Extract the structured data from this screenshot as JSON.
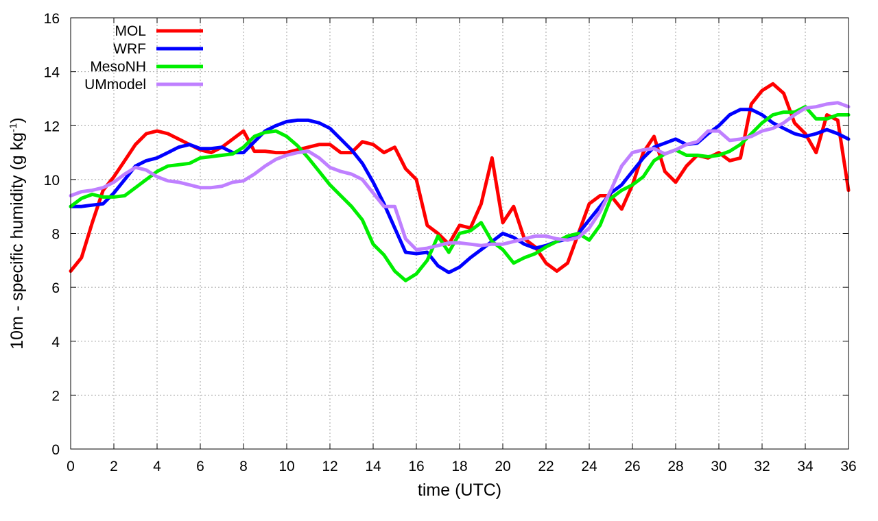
{
  "chart_data": {
    "type": "line",
    "title": "",
    "xlabel": "time (UTC)",
    "ylabel": "10m - specific humidity (g kg⁻¹)",
    "ylabel_parts": {
      "main": "10m - specific humidity (g kg",
      "sup": "-1",
      "close": ")"
    },
    "xlim": [
      0,
      36
    ],
    "ylim": [
      0,
      16
    ],
    "xticks": [
      0,
      2,
      4,
      6,
      8,
      10,
      12,
      14,
      16,
      18,
      20,
      22,
      24,
      26,
      28,
      30,
      32,
      34,
      36
    ],
    "yticks": [
      0,
      2,
      4,
      6,
      8,
      10,
      12,
      14,
      16
    ],
    "grid": true,
    "legend_position": "top-left",
    "series": [
      {
        "name": "MOL",
        "color": "#ff0000",
        "x": [
          0,
          0.5,
          1,
          1.5,
          2,
          2.5,
          3,
          3.5,
          4,
          4.5,
          5,
          5.5,
          6,
          6.5,
          7,
          7.5,
          8,
          8.5,
          9,
          9.5,
          10,
          10.5,
          11,
          11.5,
          12,
          12.5,
          13,
          13.5,
          14,
          14.5,
          15,
          15.5,
          16,
          16.5,
          17,
          17.5,
          18,
          18.5,
          19,
          19.5,
          20,
          20.5,
          21,
          21.5,
          22,
          22.5,
          23,
          23.5,
          24,
          24.5,
          25,
          25.5,
          26,
          26.5,
          27,
          27.5,
          28,
          28.5,
          29,
          29.5,
          30,
          30.5,
          31,
          31.5,
          32,
          32.5,
          33,
          33.5,
          34,
          34.5,
          35,
          35.5,
          36
        ],
        "y": [
          6.6,
          7.1,
          8.4,
          9.6,
          10.1,
          10.7,
          11.3,
          11.7,
          11.8,
          11.7,
          11.5,
          11.3,
          11.1,
          11.0,
          11.2,
          11.5,
          11.8,
          11.05,
          11.05,
          11.0,
          11.0,
          11.1,
          11.2,
          11.3,
          11.3,
          11.0,
          11.0,
          11.4,
          11.3,
          11.0,
          11.2,
          10.4,
          10.0,
          8.3,
          8.0,
          7.6,
          8.3,
          8.2,
          9.1,
          10.8,
          8.4,
          9.0,
          7.8,
          7.5,
          6.9,
          6.6,
          6.9,
          8.0,
          9.1,
          9.4,
          9.4,
          8.9,
          9.8,
          11.0,
          11.6,
          10.3,
          9.9,
          10.5,
          10.9,
          10.8,
          11.0,
          10.7,
          10.8,
          12.8,
          13.3,
          13.55,
          13.2,
          12.1,
          11.7,
          11.0,
          12.4,
          12.2,
          9.6
        ]
      },
      {
        "name": "WRF",
        "color": "#0000ff",
        "x": [
          0,
          0.5,
          1,
          1.5,
          2,
          2.5,
          3,
          3.5,
          4,
          4.5,
          5,
          5.5,
          6,
          6.5,
          7,
          7.5,
          8,
          8.5,
          9,
          9.5,
          10,
          10.5,
          11,
          11.5,
          12,
          12.5,
          13,
          13.5,
          14,
          14.5,
          15,
          15.5,
          16,
          16.5,
          17,
          17.5,
          18,
          18.5,
          19,
          19.5,
          20,
          20.5,
          21,
          21.5,
          22,
          22.5,
          23,
          23.5,
          24,
          24.5,
          25,
          25.5,
          26,
          26.5,
          27,
          27.5,
          28,
          28.5,
          29,
          29.5,
          30,
          30.5,
          31,
          31.5,
          32,
          32.5,
          33,
          33.5,
          34,
          34.5,
          35,
          35.5,
          36
        ],
        "y": [
          9.0,
          9.0,
          9.05,
          9.1,
          9.5,
          10.0,
          10.5,
          10.7,
          10.8,
          11.0,
          11.2,
          11.3,
          11.15,
          11.15,
          11.2,
          11.0,
          11.0,
          11.4,
          11.8,
          12.0,
          12.15,
          12.2,
          12.2,
          12.1,
          11.9,
          11.5,
          11.1,
          10.6,
          9.9,
          9.1,
          8.2,
          7.3,
          7.25,
          7.3,
          6.8,
          6.55,
          6.75,
          7.1,
          7.4,
          7.7,
          8.0,
          7.85,
          7.6,
          7.45,
          7.55,
          7.7,
          7.8,
          8.0,
          8.5,
          9.0,
          9.5,
          9.8,
          10.3,
          10.8,
          11.2,
          11.35,
          11.5,
          11.3,
          11.35,
          11.7,
          12.0,
          12.4,
          12.6,
          12.6,
          12.4,
          12.1,
          11.9,
          11.7,
          11.6,
          11.7,
          11.85,
          11.7,
          11.5
        ]
      },
      {
        "name": "MesoNH",
        "color": "#00ee00",
        "x": [
          0,
          0.5,
          1,
          1.5,
          2,
          2.5,
          3,
          3.5,
          4,
          4.5,
          5,
          5.5,
          6,
          6.5,
          7,
          7.5,
          8,
          8.5,
          9,
          9.5,
          10,
          10.5,
          11,
          11.5,
          12,
          12.5,
          13,
          13.5,
          14,
          14.5,
          15,
          15.5,
          16,
          16.5,
          17,
          17.5,
          18,
          18.5,
          19,
          19.5,
          20,
          20.5,
          21,
          21.5,
          22,
          22.5,
          23,
          23.5,
          24,
          24.5,
          25,
          25.5,
          26,
          26.5,
          27,
          27.5,
          28,
          28.5,
          29,
          29.5,
          30,
          30.5,
          31,
          31.5,
          32,
          32.5,
          33,
          33.5,
          34,
          34.5,
          35,
          35.5,
          36
        ],
        "y": [
          9.0,
          9.3,
          9.45,
          9.35,
          9.35,
          9.4,
          9.7,
          10.0,
          10.3,
          10.5,
          10.55,
          10.6,
          10.8,
          10.85,
          10.9,
          10.95,
          11.2,
          11.6,
          11.75,
          11.8,
          11.6,
          11.25,
          10.8,
          10.3,
          9.8,
          9.4,
          9.0,
          8.5,
          7.6,
          7.2,
          6.6,
          6.25,
          6.5,
          7.0,
          7.9,
          7.3,
          8.0,
          8.1,
          8.4,
          7.7,
          7.4,
          6.9,
          7.1,
          7.25,
          7.5,
          7.7,
          7.9,
          8.0,
          7.75,
          8.3,
          9.3,
          9.6,
          9.8,
          10.1,
          10.7,
          10.95,
          11.1,
          10.9,
          10.9,
          10.85,
          10.9,
          11.05,
          11.3,
          11.7,
          12.1,
          12.4,
          12.5,
          12.5,
          12.7,
          12.25,
          12.25,
          12.4,
          12.4
        ]
      },
      {
        "name": "UMmodel",
        "color": "#bf80ff",
        "x": [
          0,
          0.5,
          1,
          1.5,
          2,
          2.5,
          3,
          3.5,
          4,
          4.5,
          5,
          5.5,
          6,
          6.5,
          7,
          7.5,
          8,
          8.5,
          9,
          9.5,
          10,
          10.5,
          11,
          11.5,
          12,
          12.5,
          13,
          13.5,
          14,
          14.5,
          15,
          15.5,
          16,
          16.5,
          17,
          17.5,
          18,
          18.5,
          19,
          19.5,
          20,
          20.5,
          21,
          21.5,
          22,
          22.5,
          23,
          23.5,
          24,
          24.5,
          25,
          25.5,
          26,
          26.5,
          27,
          27.5,
          28,
          28.5,
          29,
          29.5,
          30,
          30.5,
          31,
          31.5,
          32,
          32.5,
          33,
          33.5,
          34,
          34.5,
          35,
          35.5,
          36
        ],
        "y": [
          9.4,
          9.55,
          9.6,
          9.7,
          9.9,
          10.2,
          10.45,
          10.35,
          10.1,
          9.95,
          9.9,
          9.8,
          9.7,
          9.7,
          9.75,
          9.9,
          9.95,
          10.2,
          10.5,
          10.75,
          10.9,
          11.0,
          11.05,
          10.8,
          10.45,
          10.3,
          10.2,
          10.0,
          9.5,
          9.0,
          9.0,
          7.8,
          7.4,
          7.45,
          7.55,
          7.65,
          7.65,
          7.6,
          7.55,
          7.6,
          7.6,
          7.7,
          7.8,
          7.9,
          7.9,
          7.8,
          7.75,
          7.85,
          8.2,
          8.8,
          9.6,
          10.5,
          11.0,
          11.1,
          11.15,
          10.95,
          11.1,
          11.3,
          11.4,
          11.8,
          11.8,
          11.45,
          11.5,
          11.6,
          11.8,
          11.9,
          12.1,
          12.4,
          12.65,
          12.7,
          12.8,
          12.85,
          12.7
        ]
      }
    ]
  }
}
